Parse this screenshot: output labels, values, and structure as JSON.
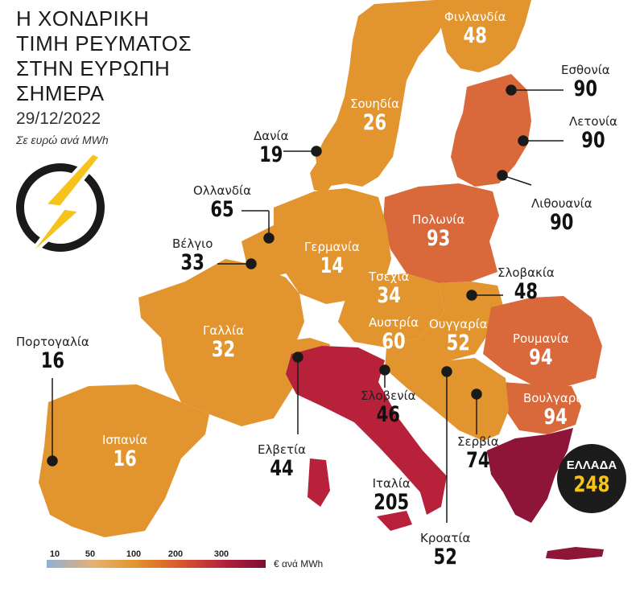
{
  "title_lines": [
    "Η ΧΟΝΔΡΙΚΗ",
    "ΤΙΜΗ ΡΕΥΜΑΤΟΣ",
    "ΣΤΗΝ ΕΥΡΩΠΗ",
    "ΣΗΜΕΡΑ"
  ],
  "date": "29/12/2022",
  "unit": "Σε ευρώ ανά MWh",
  "icon": "lightning-bolt-icon",
  "colors": {
    "orange": "#e2952e",
    "orange_red": "#d9683a",
    "red": "#b8213a",
    "dark_red": "#8e1538",
    "badge": "#1c1c1c",
    "badge_value": "#f6c31c"
  },
  "countries": [
    {
      "name": "Φινλανδία",
      "value": "48"
    },
    {
      "name": "Σουηδία",
      "value": "26"
    },
    {
      "name": "Εσθονία",
      "value": "90"
    },
    {
      "name": "Λετονία",
      "value": "90"
    },
    {
      "name": "Λιθουανία",
      "value": "90"
    },
    {
      "name": "Δανία",
      "value": "19"
    },
    {
      "name": "Ολλανδία",
      "value": "65"
    },
    {
      "name": "Βέλγιο",
      "value": "33"
    },
    {
      "name": "Γερμανία",
      "value": "14"
    },
    {
      "name": "Πολωνία",
      "value": "93"
    },
    {
      "name": "Τσεχία",
      "value": "34"
    },
    {
      "name": "Σλοβακία",
      "value": "48"
    },
    {
      "name": "Αυστρία",
      "value": "60"
    },
    {
      "name": "Ουγγαρία",
      "value": "52"
    },
    {
      "name": "Ρουμανία",
      "value": "94"
    },
    {
      "name": "Γαλλία",
      "value": "32"
    },
    {
      "name": "Πορτογαλία",
      "value": "16"
    },
    {
      "name": "Ισπανία",
      "value": "16"
    },
    {
      "name": "Σλοβενία",
      "value": "46"
    },
    {
      "name": "Βουλγαρία",
      "value": "94"
    },
    {
      "name": "Ελβετία",
      "value": "44"
    },
    {
      "name": "Σερβία",
      "value": "74"
    },
    {
      "name": "Ιταλία",
      "value": "205"
    },
    {
      "name": "Κροατία",
      "value": "52"
    }
  ],
  "greece": {
    "name": "ΕΛΛΑΔΑ",
    "value": "248"
  },
  "scale": {
    "ticks": [
      "10",
      "50",
      "100",
      "200",
      "300"
    ],
    "unit": "€ ανά MWh"
  }
}
